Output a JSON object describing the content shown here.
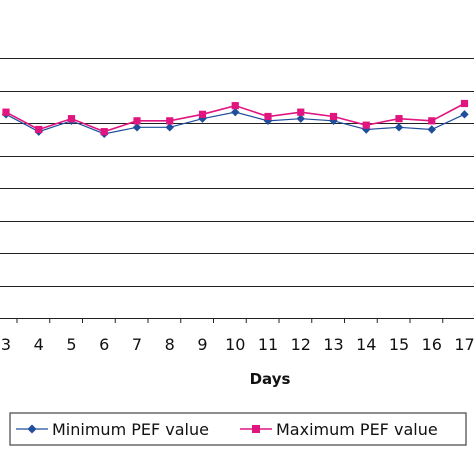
{
  "chart_data": {
    "type": "line",
    "xlabel": "Days",
    "ylabel": "",
    "title": "",
    "x": [
      3,
      4,
      5,
      6,
      7,
      8,
      9,
      10,
      11,
      12,
      13,
      14,
      15,
      16,
      17
    ],
    "x_tick_labels": [
      "3",
      "4",
      "5",
      "6",
      "7",
      "8",
      "9",
      "10",
      "11",
      "12",
      "13",
      "14",
      "15",
      "16",
      "17"
    ],
    "grid": "horizontal",
    "y_tick_labels_visible": false,
    "series": [
      {
        "name": "Minimum PEF value",
        "color": "#1f4e9c",
        "marker": "diamond",
        "values": [
          0.94,
          0.86,
          0.91,
          0.85,
          0.88,
          0.88,
          0.92,
          0.95,
          0.91,
          0.92,
          0.91,
          0.87,
          0.88,
          0.87,
          0.94
        ]
      },
      {
        "name": "Maximum PEF value",
        "color": "#e0157f",
        "marker": "square",
        "values": [
          0.95,
          0.87,
          0.92,
          0.86,
          0.91,
          0.91,
          0.94,
          0.98,
          0.93,
          0.95,
          0.93,
          0.89,
          0.92,
          0.91,
          0.99
        ]
      }
    ],
    "legend": {
      "position": "bottom"
    }
  }
}
